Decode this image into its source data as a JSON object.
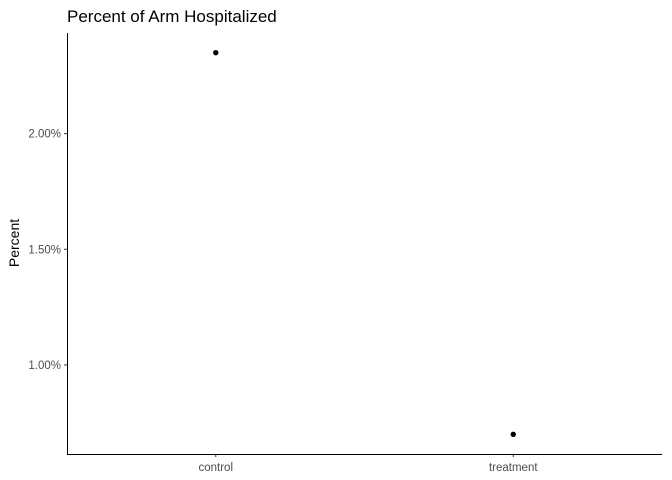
{
  "chart_data": {
    "type": "scatter",
    "title": "Percent of Arm Hospitalized",
    "xlabel": "",
    "ylabel": "Percent",
    "categories": [
      "control",
      "treatment"
    ],
    "values": [
      2.35,
      0.7
    ],
    "value_format": "percent",
    "y_ticks": [
      1.0,
      1.5,
      2.0
    ],
    "y_tick_labels": [
      "1.00%",
      "1.50%",
      "2.00%"
    ],
    "ylim": [
      0.615,
      2.435
    ],
    "grid": false,
    "legend": "none",
    "point_color": "#000000"
  }
}
